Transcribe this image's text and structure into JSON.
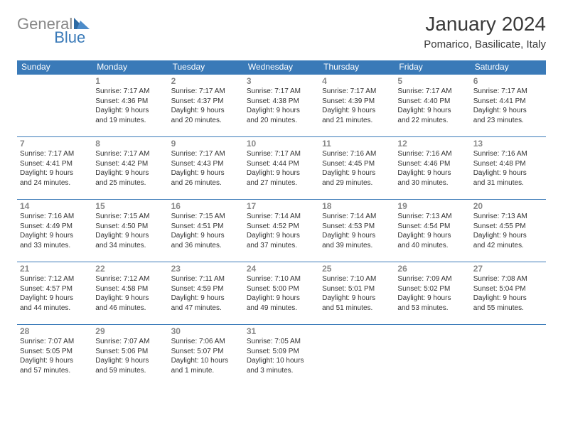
{
  "logo": {
    "word1": "General",
    "word2": "Blue"
  },
  "title": "January 2024",
  "location": "Pomarico, Basilicate, Italy",
  "colors": {
    "header_bg": "#3a7ab8",
    "header_text": "#ffffff",
    "border": "#3a7ab8",
    "logo_grey": "#888888",
    "logo_blue": "#3a7ab8",
    "body_text": "#333333",
    "daynum_text": "#888888"
  },
  "typography": {
    "title_fontsize": 28,
    "location_fontsize": 15,
    "dayheader_fontsize": 12,
    "daynum_fontsize": 12,
    "body_fontsize": 10
  },
  "day_headers": [
    "Sunday",
    "Monday",
    "Tuesday",
    "Wednesday",
    "Thursday",
    "Friday",
    "Saturday"
  ],
  "weeks": [
    [
      null,
      {
        "n": "1",
        "sr": "Sunrise: 7:17 AM",
        "ss": "Sunset: 4:36 PM",
        "d1": "Daylight: 9 hours",
        "d2": "and 19 minutes."
      },
      {
        "n": "2",
        "sr": "Sunrise: 7:17 AM",
        "ss": "Sunset: 4:37 PM",
        "d1": "Daylight: 9 hours",
        "d2": "and 20 minutes."
      },
      {
        "n": "3",
        "sr": "Sunrise: 7:17 AM",
        "ss": "Sunset: 4:38 PM",
        "d1": "Daylight: 9 hours",
        "d2": "and 20 minutes."
      },
      {
        "n": "4",
        "sr": "Sunrise: 7:17 AM",
        "ss": "Sunset: 4:39 PM",
        "d1": "Daylight: 9 hours",
        "d2": "and 21 minutes."
      },
      {
        "n": "5",
        "sr": "Sunrise: 7:17 AM",
        "ss": "Sunset: 4:40 PM",
        "d1": "Daylight: 9 hours",
        "d2": "and 22 minutes."
      },
      {
        "n": "6",
        "sr": "Sunrise: 7:17 AM",
        "ss": "Sunset: 4:41 PM",
        "d1": "Daylight: 9 hours",
        "d2": "and 23 minutes."
      }
    ],
    [
      {
        "n": "7",
        "sr": "Sunrise: 7:17 AM",
        "ss": "Sunset: 4:41 PM",
        "d1": "Daylight: 9 hours",
        "d2": "and 24 minutes."
      },
      {
        "n": "8",
        "sr": "Sunrise: 7:17 AM",
        "ss": "Sunset: 4:42 PM",
        "d1": "Daylight: 9 hours",
        "d2": "and 25 minutes."
      },
      {
        "n": "9",
        "sr": "Sunrise: 7:17 AM",
        "ss": "Sunset: 4:43 PM",
        "d1": "Daylight: 9 hours",
        "d2": "and 26 minutes."
      },
      {
        "n": "10",
        "sr": "Sunrise: 7:17 AM",
        "ss": "Sunset: 4:44 PM",
        "d1": "Daylight: 9 hours",
        "d2": "and 27 minutes."
      },
      {
        "n": "11",
        "sr": "Sunrise: 7:16 AM",
        "ss": "Sunset: 4:45 PM",
        "d1": "Daylight: 9 hours",
        "d2": "and 29 minutes."
      },
      {
        "n": "12",
        "sr": "Sunrise: 7:16 AM",
        "ss": "Sunset: 4:46 PM",
        "d1": "Daylight: 9 hours",
        "d2": "and 30 minutes."
      },
      {
        "n": "13",
        "sr": "Sunrise: 7:16 AM",
        "ss": "Sunset: 4:48 PM",
        "d1": "Daylight: 9 hours",
        "d2": "and 31 minutes."
      }
    ],
    [
      {
        "n": "14",
        "sr": "Sunrise: 7:16 AM",
        "ss": "Sunset: 4:49 PM",
        "d1": "Daylight: 9 hours",
        "d2": "and 33 minutes."
      },
      {
        "n": "15",
        "sr": "Sunrise: 7:15 AM",
        "ss": "Sunset: 4:50 PM",
        "d1": "Daylight: 9 hours",
        "d2": "and 34 minutes."
      },
      {
        "n": "16",
        "sr": "Sunrise: 7:15 AM",
        "ss": "Sunset: 4:51 PM",
        "d1": "Daylight: 9 hours",
        "d2": "and 36 minutes."
      },
      {
        "n": "17",
        "sr": "Sunrise: 7:14 AM",
        "ss": "Sunset: 4:52 PM",
        "d1": "Daylight: 9 hours",
        "d2": "and 37 minutes."
      },
      {
        "n": "18",
        "sr": "Sunrise: 7:14 AM",
        "ss": "Sunset: 4:53 PM",
        "d1": "Daylight: 9 hours",
        "d2": "and 39 minutes."
      },
      {
        "n": "19",
        "sr": "Sunrise: 7:13 AM",
        "ss": "Sunset: 4:54 PM",
        "d1": "Daylight: 9 hours",
        "d2": "and 40 minutes."
      },
      {
        "n": "20",
        "sr": "Sunrise: 7:13 AM",
        "ss": "Sunset: 4:55 PM",
        "d1": "Daylight: 9 hours",
        "d2": "and 42 minutes."
      }
    ],
    [
      {
        "n": "21",
        "sr": "Sunrise: 7:12 AM",
        "ss": "Sunset: 4:57 PM",
        "d1": "Daylight: 9 hours",
        "d2": "and 44 minutes."
      },
      {
        "n": "22",
        "sr": "Sunrise: 7:12 AM",
        "ss": "Sunset: 4:58 PM",
        "d1": "Daylight: 9 hours",
        "d2": "and 46 minutes."
      },
      {
        "n": "23",
        "sr": "Sunrise: 7:11 AM",
        "ss": "Sunset: 4:59 PM",
        "d1": "Daylight: 9 hours",
        "d2": "and 47 minutes."
      },
      {
        "n": "24",
        "sr": "Sunrise: 7:10 AM",
        "ss": "Sunset: 5:00 PM",
        "d1": "Daylight: 9 hours",
        "d2": "and 49 minutes."
      },
      {
        "n": "25",
        "sr": "Sunrise: 7:10 AM",
        "ss": "Sunset: 5:01 PM",
        "d1": "Daylight: 9 hours",
        "d2": "and 51 minutes."
      },
      {
        "n": "26",
        "sr": "Sunrise: 7:09 AM",
        "ss": "Sunset: 5:02 PM",
        "d1": "Daylight: 9 hours",
        "d2": "and 53 minutes."
      },
      {
        "n": "27",
        "sr": "Sunrise: 7:08 AM",
        "ss": "Sunset: 5:04 PM",
        "d1": "Daylight: 9 hours",
        "d2": "and 55 minutes."
      }
    ],
    [
      {
        "n": "28",
        "sr": "Sunrise: 7:07 AM",
        "ss": "Sunset: 5:05 PM",
        "d1": "Daylight: 9 hours",
        "d2": "and 57 minutes."
      },
      {
        "n": "29",
        "sr": "Sunrise: 7:07 AM",
        "ss": "Sunset: 5:06 PM",
        "d1": "Daylight: 9 hours",
        "d2": "and 59 minutes."
      },
      {
        "n": "30",
        "sr": "Sunrise: 7:06 AM",
        "ss": "Sunset: 5:07 PM",
        "d1": "Daylight: 10 hours",
        "d2": "and 1 minute."
      },
      {
        "n": "31",
        "sr": "Sunrise: 7:05 AM",
        "ss": "Sunset: 5:09 PM",
        "d1": "Daylight: 10 hours",
        "d2": "and 3 minutes."
      },
      null,
      null,
      null
    ]
  ]
}
